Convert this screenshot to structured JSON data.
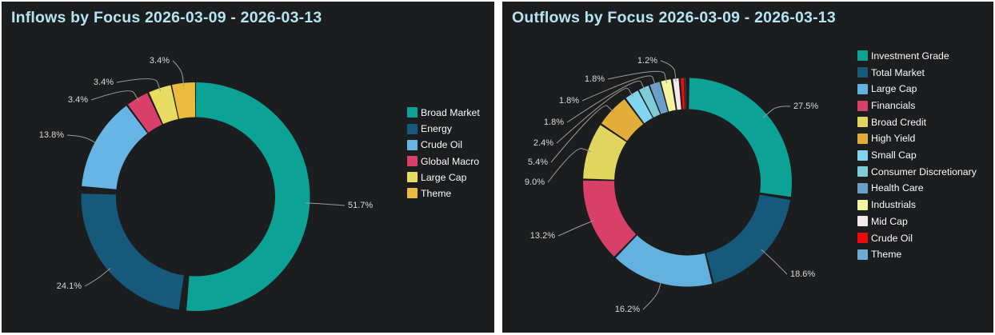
{
  "theme": {
    "page_bg": "#ffffff",
    "panel_bg": "#1c1d1f",
    "title_color": "#b4e4ef",
    "percent_label_color": "#d9d9d9",
    "leader_line_color": "#9a9a9a",
    "legend_text_color": "#fafafa"
  },
  "chart_data": [
    {
      "type": "pie",
      "donut": true,
      "title": "Inflows by Focus 2026-03-09 - 2026-03-13",
      "legend_position": "right",
      "slices": [
        {
          "label": "Broad Market",
          "value": 51.7,
          "pct_label": "51.7%",
          "color": "#0ca396"
        },
        {
          "label": "Energy",
          "value": 24.1,
          "pct_label": "24.1%",
          "color": "#17597a"
        },
        {
          "label": "Crude Oil",
          "value": 13.8,
          "pct_label": "13.8%",
          "color": "#67b5e5"
        },
        {
          "label": "Global Macro",
          "value": 3.4,
          "pct_label": "3.4%",
          "color": "#d84069"
        },
        {
          "label": "Large Cap",
          "value": 3.4,
          "pct_label": "3.4%",
          "color": "#e9dc62"
        },
        {
          "label": "Theme",
          "value": 3.4,
          "pct_label": "3.4%",
          "color": "#eabc3e"
        }
      ]
    },
    {
      "type": "pie",
      "donut": true,
      "title": "Outflows by Focus 2026-03-09 - 2026-03-13",
      "legend_position": "right",
      "slices": [
        {
          "label": "Investment Grade",
          "value": 27.5,
          "pct_label": "27.5%",
          "color": "#0ca396"
        },
        {
          "label": "Total Market",
          "value": 18.6,
          "pct_label": "18.6%",
          "color": "#17597a"
        },
        {
          "label": "Large Cap",
          "value": 16.2,
          "pct_label": "16.2%",
          "color": "#62b1de"
        },
        {
          "label": "Financials",
          "value": 13.2,
          "pct_label": "13.2%",
          "color": "#d84069"
        },
        {
          "label": "Broad Credit",
          "value": 9.0,
          "pct_label": "9.0%",
          "color": "#e0d65f"
        },
        {
          "label": "High Yield",
          "value": 5.4,
          "pct_label": "5.4%",
          "color": "#e2ad38"
        },
        {
          "label": "Small Cap",
          "value": 2.4,
          "pct_label": "2.4%",
          "color": "#82d5f0"
        },
        {
          "label": "Consumer Discretionary",
          "value": 1.8,
          "pct_label": "1.8%",
          "color": "#7fcbd6"
        },
        {
          "label": "Health Care",
          "value": 1.8,
          "pct_label": "1.8%",
          "color": "#6b9ec9"
        },
        {
          "label": "Industrials",
          "value": 1.8,
          "pct_label": "1.8%",
          "color": "#f7f4a1"
        },
        {
          "label": "Mid Cap",
          "value": 1.2,
          "pct_label": "1.2%",
          "color": "#f3e9ec"
        },
        {
          "label": "Crude Oil",
          "value": 0.75,
          "pct_label": "",
          "color": "#ee0a0a"
        },
        {
          "label": "Theme",
          "value": 0.45,
          "pct_label": "",
          "color": "#6cabd4"
        }
      ]
    }
  ]
}
